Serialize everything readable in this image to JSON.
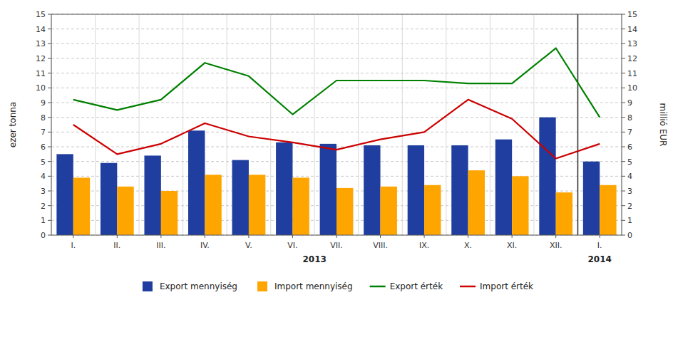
{
  "chart_data": {
    "type": "bar",
    "categories": [
      "I.",
      "II.",
      "III.",
      "IV.",
      "V.",
      "VI.",
      "VII.",
      "VIII.",
      "IX.",
      "X.",
      "XI.",
      "XII.",
      "I."
    ],
    "annotations": [
      "2013",
      "2014"
    ],
    "series": [
      {
        "name": "Export mennyiség",
        "type": "bar",
        "color": "#1F3E9F",
        "values": [
          5.5,
          4.9,
          5.4,
          7.1,
          5.1,
          6.3,
          6.2,
          6.1,
          6.1,
          6.1,
          6.5,
          8.0,
          5.0
        ]
      },
      {
        "name": "Import mennyiség",
        "type": "bar",
        "color": "#FFA500",
        "values": [
          3.9,
          3.3,
          3.0,
          4.1,
          4.1,
          3.9,
          3.2,
          3.3,
          3.4,
          4.4,
          4.0,
          2.9,
          3.4
        ]
      },
      {
        "name": "Export érték",
        "type": "line",
        "axis": "y2",
        "color": "#008000",
        "values": [
          9.2,
          8.5,
          9.2,
          11.7,
          10.8,
          8.2,
          10.5,
          10.5,
          10.5,
          10.3,
          10.3,
          12.7,
          8.0
        ]
      },
      {
        "name": "Import érték",
        "type": "line",
        "axis": "y2",
        "color": "#CC0000",
        "values": [
          7.5,
          5.5,
          6.2,
          7.6,
          6.7,
          6.3,
          5.8,
          6.5,
          7.0,
          9.2,
          7.9,
          5.2,
          6.2
        ]
      }
    ],
    "ylabel": "ezer tonna",
    "y2label": "millió EUR",
    "ylim": [
      0,
      15
    ],
    "yticks": [
      0,
      1,
      2,
      3,
      4,
      5,
      6,
      7,
      8,
      9,
      10,
      11,
      12,
      13,
      14,
      15
    ],
    "y2lim": [
      0,
      15
    ],
    "y2ticks": [
      0,
      1,
      2,
      3,
      4,
      5,
      6,
      7,
      8,
      9,
      10,
      11,
      12,
      13,
      14,
      15
    ],
    "grid": true,
    "legend": "bottom"
  }
}
